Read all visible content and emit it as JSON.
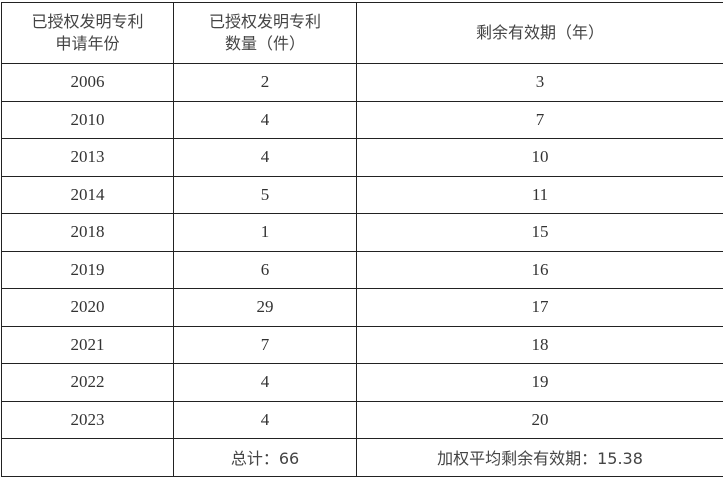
{
  "table": {
    "headers": [
      "已授权发明专利\n申请年份",
      "已授权发明专利\n数量（件）",
      "剩余有效期（年）"
    ],
    "header_lines": [
      [
        "已授权发明专利",
        "申请年份"
      ],
      [
        "已授权发明专利",
        "数量（件）"
      ],
      [
        "剩余有效期（年）"
      ]
    ],
    "rows": [
      [
        "2006",
        "2",
        "3"
      ],
      [
        "2010",
        "4",
        "7"
      ],
      [
        "2013",
        "4",
        "10"
      ],
      [
        "2014",
        "5",
        "11"
      ],
      [
        "2018",
        "1",
        "15"
      ],
      [
        "2019",
        "6",
        "16"
      ],
      [
        "2020",
        "29",
        "17"
      ],
      [
        "2021",
        "7",
        "18"
      ],
      [
        "2022",
        "4",
        "19"
      ],
      [
        "2023",
        "4",
        "20"
      ]
    ],
    "footer": [
      "",
      "总计：66",
      "加权平均剩余有效期：15.38"
    ]
  }
}
